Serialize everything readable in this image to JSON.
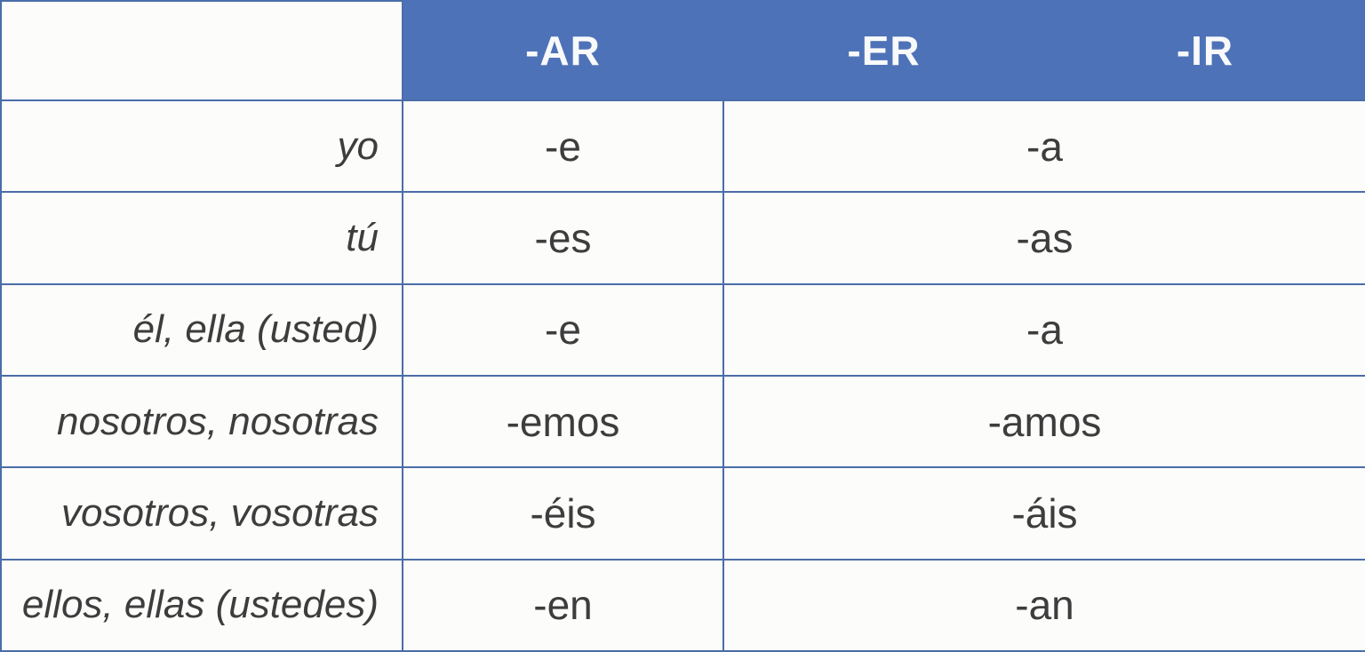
{
  "table": {
    "header": {
      "corner": "",
      "columns": [
        "-AR",
        "-ER",
        "-IR"
      ]
    },
    "rows": [
      {
        "pronoun": "yo",
        "ar": "-e",
        "er_ir": "-a"
      },
      {
        "pronoun": "tú",
        "ar": "-es",
        "er_ir": "-as"
      },
      {
        "pronoun": "él, ella (usted)",
        "ar": "-e",
        "er_ir": "-a"
      },
      {
        "pronoun": "nosotros, nosotras",
        "ar": "-emos",
        "er_ir": "-amos"
      },
      {
        "pronoun": "vosotros, vosotras",
        "ar": "-éis",
        "er_ir": "-áis"
      },
      {
        "pronoun": "ellos, ellas (ustedes)",
        "ar": "-en",
        "er_ir": "-an"
      }
    ],
    "colors": {
      "header_bg": "#4e72b7",
      "border": "#4a6da8",
      "cell_bg": "#fcfcfb",
      "text": "#3d3d3d",
      "header_text": "#f8f9fa"
    }
  }
}
